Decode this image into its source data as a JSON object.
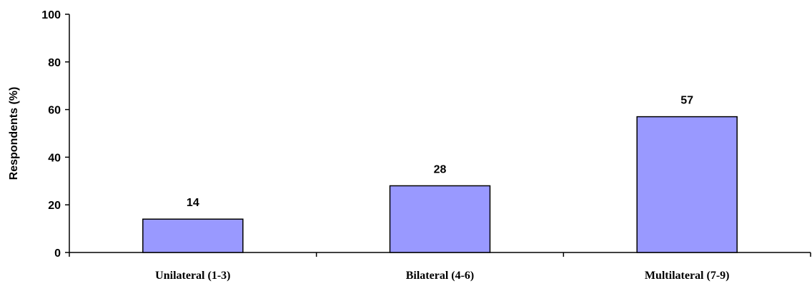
{
  "chart_data": {
    "type": "bar",
    "title": "",
    "xlabel": "",
    "ylabel": "Respondents (%)",
    "categories": [
      "Unilateral (1-3)",
      "Bilateral (4-6)",
      "Multilateral (7-9)"
    ],
    "values": [
      14,
      28,
      57
    ],
    "data_labels": [
      "14",
      "28",
      "57"
    ],
    "ylim": [
      0,
      100
    ],
    "yticks": [
      0,
      20,
      40,
      60,
      80,
      100
    ],
    "ytick_labels": [
      "0",
      "20",
      "40",
      "60",
      "80",
      "100"
    ],
    "grid": false,
    "legend": "none",
    "bar_color": "#9999ff",
    "bar_edge_color": "#000000"
  }
}
